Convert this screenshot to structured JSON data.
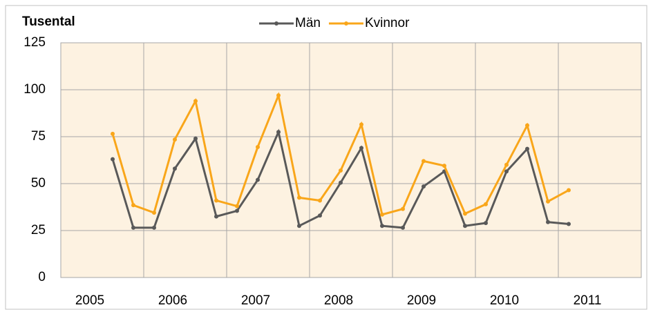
{
  "chart_data": {
    "type": "line",
    "title": "Tusental",
    "categories": [
      "2005",
      null,
      null,
      null,
      "2006",
      null,
      null,
      null,
      "2007",
      null,
      null,
      null,
      "2008",
      null,
      null,
      null,
      "2009",
      null,
      null,
      null,
      "2010",
      null,
      null,
      null,
      "2011",
      null,
      null,
      null
    ],
    "series": [
      {
        "name": "Män",
        "color": "#595959",
        "values": [
          null,
          null,
          63,
          26.5,
          26.5,
          58,
          74,
          32.5,
          35.5,
          52,
          77.5,
          27.5,
          33,
          50.5,
          69,
          27.5,
          26.5,
          48.5,
          56.5,
          27.5,
          29,
          56.5,
          68.5,
          29.5,
          28.5,
          null,
          null,
          null
        ]
      },
      {
        "name": "Kvinnor",
        "color": "#f9a61a",
        "values": [
          null,
          null,
          76.5,
          38.5,
          34.5,
          73.5,
          94,
          41,
          38,
          69.5,
          97,
          42.5,
          41,
          57,
          81.5,
          33.5,
          36.5,
          62,
          59.5,
          34,
          39,
          60,
          81,
          40.5,
          46.5,
          null,
          null,
          null
        ]
      }
    ],
    "ylim": [
      0,
      125
    ],
    "yticks": [
      0,
      25,
      50,
      75,
      100,
      125
    ],
    "grid": true
  }
}
